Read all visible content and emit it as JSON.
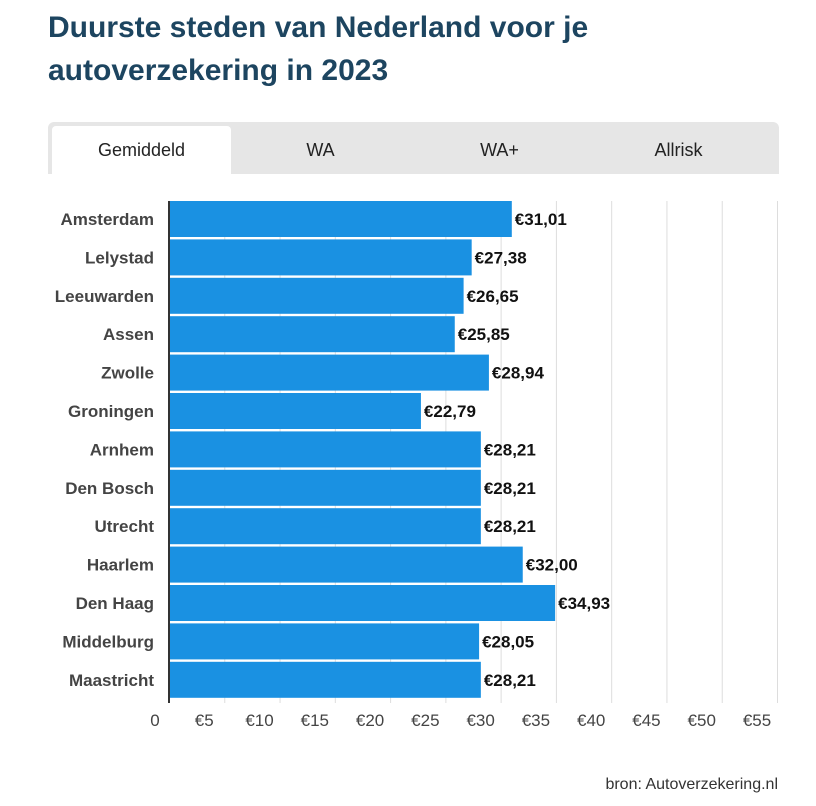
{
  "title": "Duurste steden van Nederland voor je autoverzekering in 2023",
  "tabs": [
    {
      "label": "Gemiddeld",
      "active": true
    },
    {
      "label": "WA",
      "active": false
    },
    {
      "label": "WA+",
      "active": false
    },
    {
      "label": "Allrisk",
      "active": false
    }
  ],
  "source": "bron: Autoverzekering.nl",
  "colors": {
    "bar": "#1a91e2",
    "title": "#1d4560",
    "grid": "#dddddd",
    "axis": "#333333"
  },
  "chart_data": {
    "type": "bar",
    "orientation": "horizontal",
    "categories": [
      "Amsterdam",
      "Lelystad",
      "Leeuwarden",
      "Assen",
      "Zwolle",
      "Groningen",
      "Arnhem",
      "Den Bosch",
      "Utrecht",
      "Haarlem",
      "Den Haag",
      "Middelburg",
      "Maastricht"
    ],
    "values": [
      31.01,
      27.38,
      26.65,
      25.85,
      28.94,
      22.79,
      28.21,
      28.21,
      28.21,
      32.0,
      34.93,
      28.05,
      28.21
    ],
    "value_labels": [
      "€31,01",
      "€27,38",
      "€26,65",
      "€25,85",
      "€28,94",
      "€22,79",
      "€28,21",
      "€28,21",
      "€28,21",
      "€32,00",
      "€34,93",
      "€28,05",
      "€28,21"
    ],
    "xticks": [
      0,
      5,
      10,
      15,
      20,
      25,
      30,
      35,
      40,
      45,
      50,
      55
    ],
    "xtick_labels": [
      "0",
      "€5",
      "€10",
      "€15",
      "€20",
      "€25",
      "€30",
      "€35",
      "€40",
      "€45",
      "€50",
      "€55"
    ],
    "xlim": [
      0,
      55
    ],
    "grid": true,
    "legend": "none"
  }
}
